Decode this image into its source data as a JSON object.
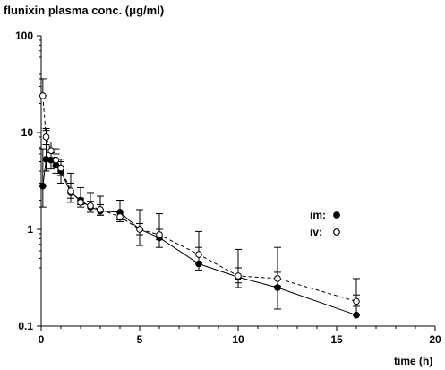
{
  "chart_data": {
    "type": "line",
    "ylabel": "flunixin plasma conc. (μg/ml)",
    "xlabel": "time (h)",
    "xlim": [
      0,
      20
    ],
    "ylim": [
      0.1,
      100
    ],
    "yscale": "log",
    "x_ticks": [
      0,
      5,
      10,
      15,
      20
    ],
    "y_ticks": [
      0.1,
      1,
      10,
      100
    ],
    "x_tick_labels": [
      "0",
      "5",
      "10",
      "15",
      "20"
    ],
    "y_tick_labels": [
      "0.1",
      "1",
      "10",
      "100"
    ],
    "grid": false,
    "legend": "right",
    "series": [
      {
        "name": "im:",
        "marker": "filled-circle",
        "line": "solid",
        "points": [
          {
            "x": 0.083,
            "y": 2.8,
            "err_up": 6.8,
            "err_low": 1.7
          },
          {
            "x": 0.25,
            "y": 5.3,
            "err_up": 10.5,
            "err_low": 4.0
          },
          {
            "x": 0.5,
            "y": 5.2,
            "err_up": 6.2,
            "err_low": 4.2
          },
          {
            "x": 0.75,
            "y": 4.6,
            "err_up": 6.8,
            "err_low": 3.8
          },
          {
            "x": 1.0,
            "y": 4.0,
            "err_up": 5.3,
            "err_low": 3.0
          },
          {
            "x": 1.5,
            "y": 2.4,
            "err_up": 3.8,
            "err_low": 1.9
          },
          {
            "x": 2.0,
            "y": 2.0,
            "err_up": 2.7,
            "err_low": 1.8
          },
          {
            "x": 2.5,
            "y": 1.7,
            "err_up": 2.4,
            "err_low": 1.5
          },
          {
            "x": 3.0,
            "y": 1.55,
            "err_up": 2.2,
            "err_low": 1.4
          },
          {
            "x": 4.0,
            "y": 1.5,
            "err_up": 2.0,
            "err_low": 1.25
          },
          {
            "x": 5.0,
            "y": 1.0,
            "err_up": 1.6,
            "err_low": 0.68
          },
          {
            "x": 6.0,
            "y": 0.82,
            "err_up": 1.45,
            "err_low": 0.65
          },
          {
            "x": 8.0,
            "y": 0.44,
            "err_up": 0.95,
            "err_low": 0.38
          },
          {
            "x": 10.0,
            "y": 0.32,
            "err_up": 0.62,
            "err_low": 0.25
          },
          {
            "x": 12.0,
            "y": 0.25,
            "err_up": 0.65,
            "err_low": 0.15
          },
          {
            "x": 16.0,
            "y": 0.13,
            "err_up": 0.31,
            "err_low": 0.13
          }
        ]
      },
      {
        "name": "iv:",
        "marker": "open-circle",
        "line": "dashed",
        "points": [
          {
            "x": 0.083,
            "y": 24.0,
            "err_up": 36.0,
            "err_low": 24.0
          },
          {
            "x": 0.25,
            "y": 9.0,
            "err_up": 11.0,
            "err_low": 7.5
          },
          {
            "x": 0.5,
            "y": 6.5,
            "err_up": 8.0,
            "err_low": 5.5
          },
          {
            "x": 0.75,
            "y": 5.2,
            "err_up": 6.0,
            "err_low": 4.5
          },
          {
            "x": 1.0,
            "y": 4.3,
            "err_up": 5.0,
            "err_low": 3.6
          },
          {
            "x": 1.5,
            "y": 2.5,
            "err_up": 3.0,
            "err_low": 2.1
          },
          {
            "x": 2.0,
            "y": 1.9,
            "err_up": 2.1,
            "err_low": 1.7
          },
          {
            "x": 2.5,
            "y": 1.75,
            "err_up": 1.95,
            "err_low": 1.55
          },
          {
            "x": 3.0,
            "y": 1.6,
            "err_up": 1.8,
            "err_low": 1.4
          },
          {
            "x": 4.0,
            "y": 1.35,
            "err_up": 1.55,
            "err_low": 1.2
          },
          {
            "x": 5.0,
            "y": 1.0,
            "err_up": 1.15,
            "err_low": 0.88
          },
          {
            "x": 6.0,
            "y": 0.88,
            "err_up": 1.0,
            "err_low": 0.78
          },
          {
            "x": 8.0,
            "y": 0.55,
            "err_up": 0.65,
            "err_low": 0.45
          },
          {
            "x": 10.0,
            "y": 0.33,
            "err_up": 0.4,
            "err_low": 0.28
          },
          {
            "x": 12.0,
            "y": 0.31,
            "err_up": 0.36,
            "err_low": 0.26
          },
          {
            "x": 16.0,
            "y": 0.18,
            "err_up": 0.21,
            "err_low": 0.16
          }
        ]
      }
    ]
  }
}
